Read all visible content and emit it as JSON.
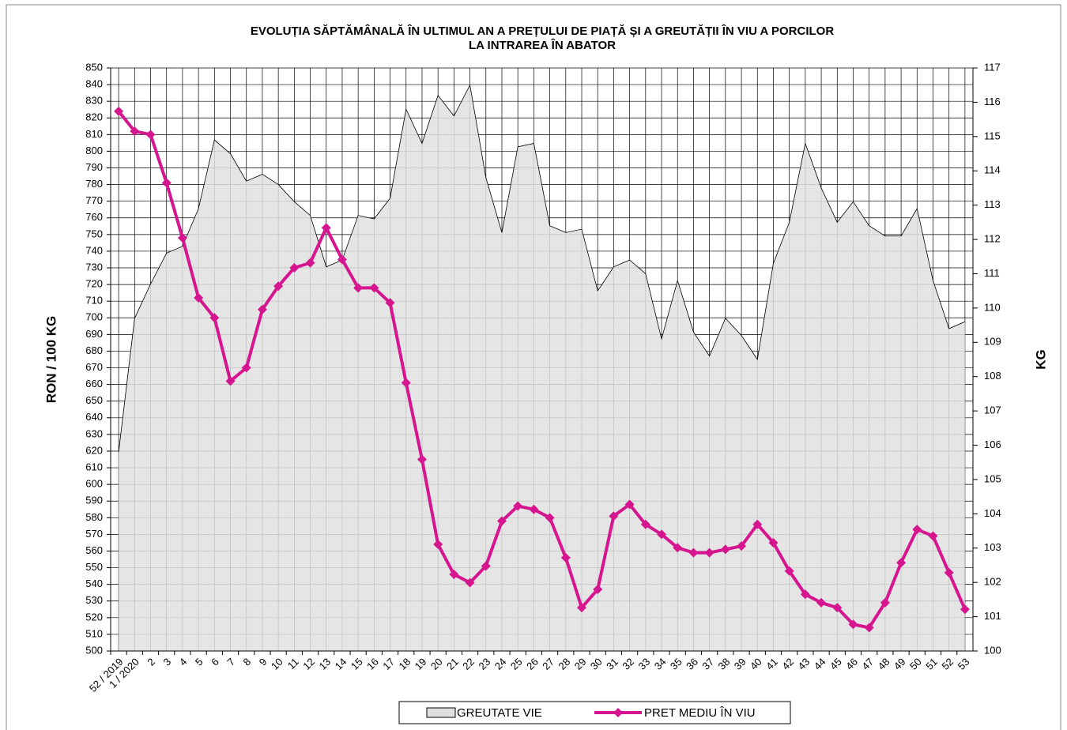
{
  "chart_data": {
    "type": "line",
    "title": [
      "EVOLUȚIA SĂPTĂMÂNALĂ ÎN ULTIMUL  AN A PREȚULUI  DE PIAȚĂ ȘI A GREUTĂȚII  ÎN VIU A PORCILOR",
      "LA INTRAREA ÎN ABATOR"
    ],
    "y_label": "RON / 100 KG",
    "y2_label": "KG",
    "categories": [
      "52 / 2019",
      "1 / 2020",
      "2",
      "3",
      "4",
      "5",
      "6",
      "7",
      "8",
      "9",
      "10",
      "11",
      "12",
      "13",
      "14",
      "15",
      "16",
      "17",
      "18",
      "19",
      "20",
      "21",
      "22",
      "23",
      "24",
      "25",
      "26",
      "27",
      "28",
      "29",
      "30",
      "31",
      "32",
      "33",
      "34",
      "35",
      "36",
      "37",
      "38",
      "39",
      "40",
      "41",
      "42",
      "43",
      "44",
      "45",
      "46",
      "47",
      "48",
      "49",
      "50",
      "51",
      "52",
      "53"
    ],
    "series": [
      {
        "name": "GREUTATE VIE",
        "kind": "area",
        "axis": "y2",
        "color": "#e0e0e0",
        "values": [
          105.8,
          109.7,
          110.7,
          111.6,
          111.8,
          112.9,
          114.9,
          114.5,
          113.7,
          113.9,
          113.6,
          113.1,
          112.7,
          111.2,
          111.4,
          112.7,
          112.6,
          113.2,
          115.8,
          114.8,
          116.2,
          115.6,
          116.5,
          113.8,
          112.2,
          114.7,
          114.8,
          112.4,
          112.2,
          112.3,
          110.5,
          111.2,
          111.4,
          111.0,
          109.1,
          110.8,
          109.3,
          108.6,
          109.7,
          109.2,
          108.5,
          111.3,
          112.5,
          114.8,
          113.5,
          112.5,
          113.1,
          112.4,
          112.1,
          112.1,
          112.9,
          110.8,
          109.4,
          109.6
        ]
      },
      {
        "name": "PRET MEDIU ÎN VIU",
        "kind": "line",
        "axis": "y",
        "color": "#d6168f",
        "values": [
          824,
          812,
          810,
          781,
          748,
          712,
          700,
          662,
          670,
          705,
          719,
          730,
          733,
          754,
          735,
          718,
          718,
          709,
          661,
          615,
          564,
          546,
          541,
          551,
          578,
          587,
          585,
          580,
          556,
          526,
          537,
          581,
          588,
          576,
          570,
          562,
          559,
          559,
          561,
          563,
          576,
          565,
          548,
          534,
          529,
          526,
          516,
          514,
          529,
          553,
          573,
          569,
          547,
          525
        ]
      }
    ],
    "ylim": [
      500,
      850
    ],
    "yticks": [
      500,
      510,
      520,
      530,
      540,
      550,
      560,
      570,
      580,
      590,
      600,
      610,
      620,
      630,
      640,
      650,
      660,
      670,
      680,
      690,
      700,
      710,
      720,
      730,
      740,
      750,
      760,
      770,
      780,
      790,
      800,
      810,
      820,
      830,
      840,
      850
    ],
    "y2lim": [
      100,
      117
    ],
    "y2ticks": [
      100,
      101,
      102,
      103,
      104,
      105,
      106,
      107,
      108,
      109,
      110,
      111,
      112,
      113,
      114,
      115,
      116,
      117
    ],
    "grid": true,
    "legend": "bottom"
  }
}
